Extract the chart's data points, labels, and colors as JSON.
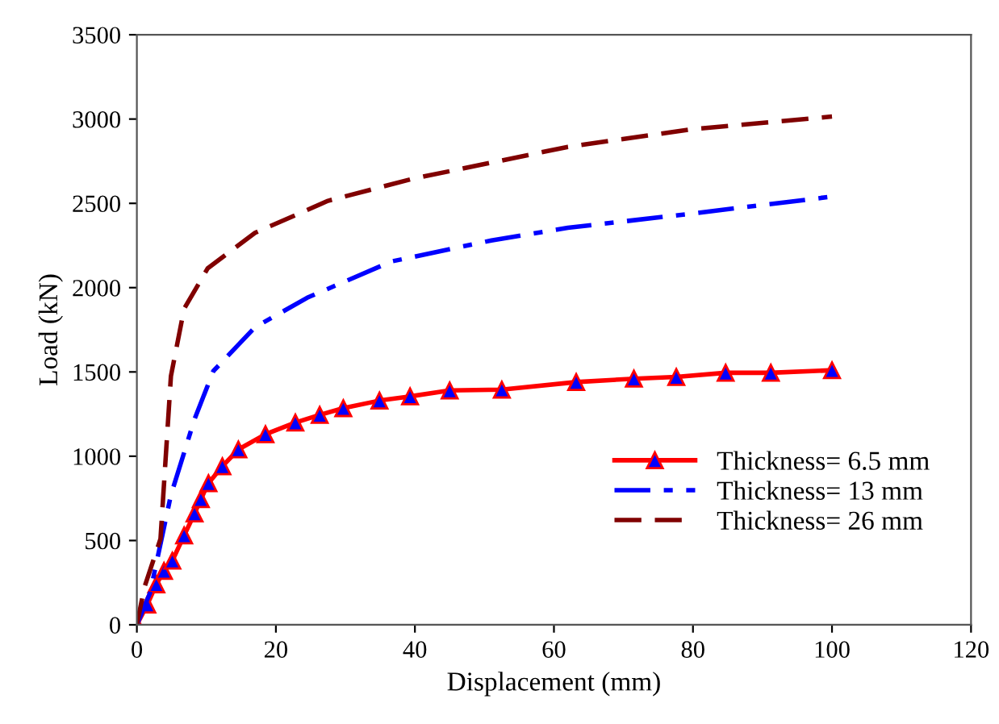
{
  "chart_data": {
    "type": "line",
    "xlabel": "Displacement (mm)",
    "ylabel": "Load (kN)",
    "xlim": [
      0,
      120
    ],
    "ylim": [
      0,
      3500
    ],
    "xticks": [
      0,
      20,
      40,
      60,
      80,
      100,
      120
    ],
    "yticks": [
      0,
      500,
      1000,
      1500,
      2000,
      2500,
      3000,
      3500
    ],
    "grid": false,
    "legend": "bottom right",
    "series": [
      {
        "name": "Thickness= 6.5 mm",
        "color": "#ff0000",
        "marker": "triangle",
        "line_style": "solid",
        "x": [
          0,
          1.5,
          2.8,
          3.9,
          5.1,
          6.8,
          8.3,
          9.2,
          10.3,
          12.3,
          14.6,
          18.5,
          22.8,
          26.3,
          29.7,
          34.9,
          39.3,
          45,
          52.5,
          63.2,
          71.5,
          77.6,
          84.7,
          91.2,
          100
        ],
        "values": [
          0,
          120,
          240,
          320,
          380,
          530,
          660,
          745,
          840,
          940,
          1040,
          1130,
          1200,
          1245,
          1285,
          1330,
          1355,
          1390,
          1395,
          1440,
          1460,
          1470,
          1495,
          1495,
          1510
        ]
      },
      {
        "name": "Thickness= 13 mm",
        "color": "#0000ff",
        "marker": "none",
        "line_style": "dashdot",
        "x": [
          0,
          1.9,
          4.9,
          8.3,
          11,
          17,
          24.5,
          36.6,
          51,
          62,
          80,
          100
        ],
        "values": [
          0,
          190,
          770,
          1220,
          1505,
          1765,
          1940,
          2155,
          2280,
          2355,
          2440,
          2540
        ]
      },
      {
        "name": "Thickness= 26 mm",
        "color": "#800000",
        "marker": "none",
        "line_style": "dashed",
        "x": [
          0,
          1.1,
          3.4,
          4.9,
          6.8,
          10.2,
          17,
          27.5,
          39.6,
          62,
          80,
          100
        ],
        "values": [
          0,
          225,
          510,
          1475,
          1875,
          2115,
          2325,
          2515,
          2645,
          2835,
          2940,
          3015
        ]
      }
    ]
  }
}
